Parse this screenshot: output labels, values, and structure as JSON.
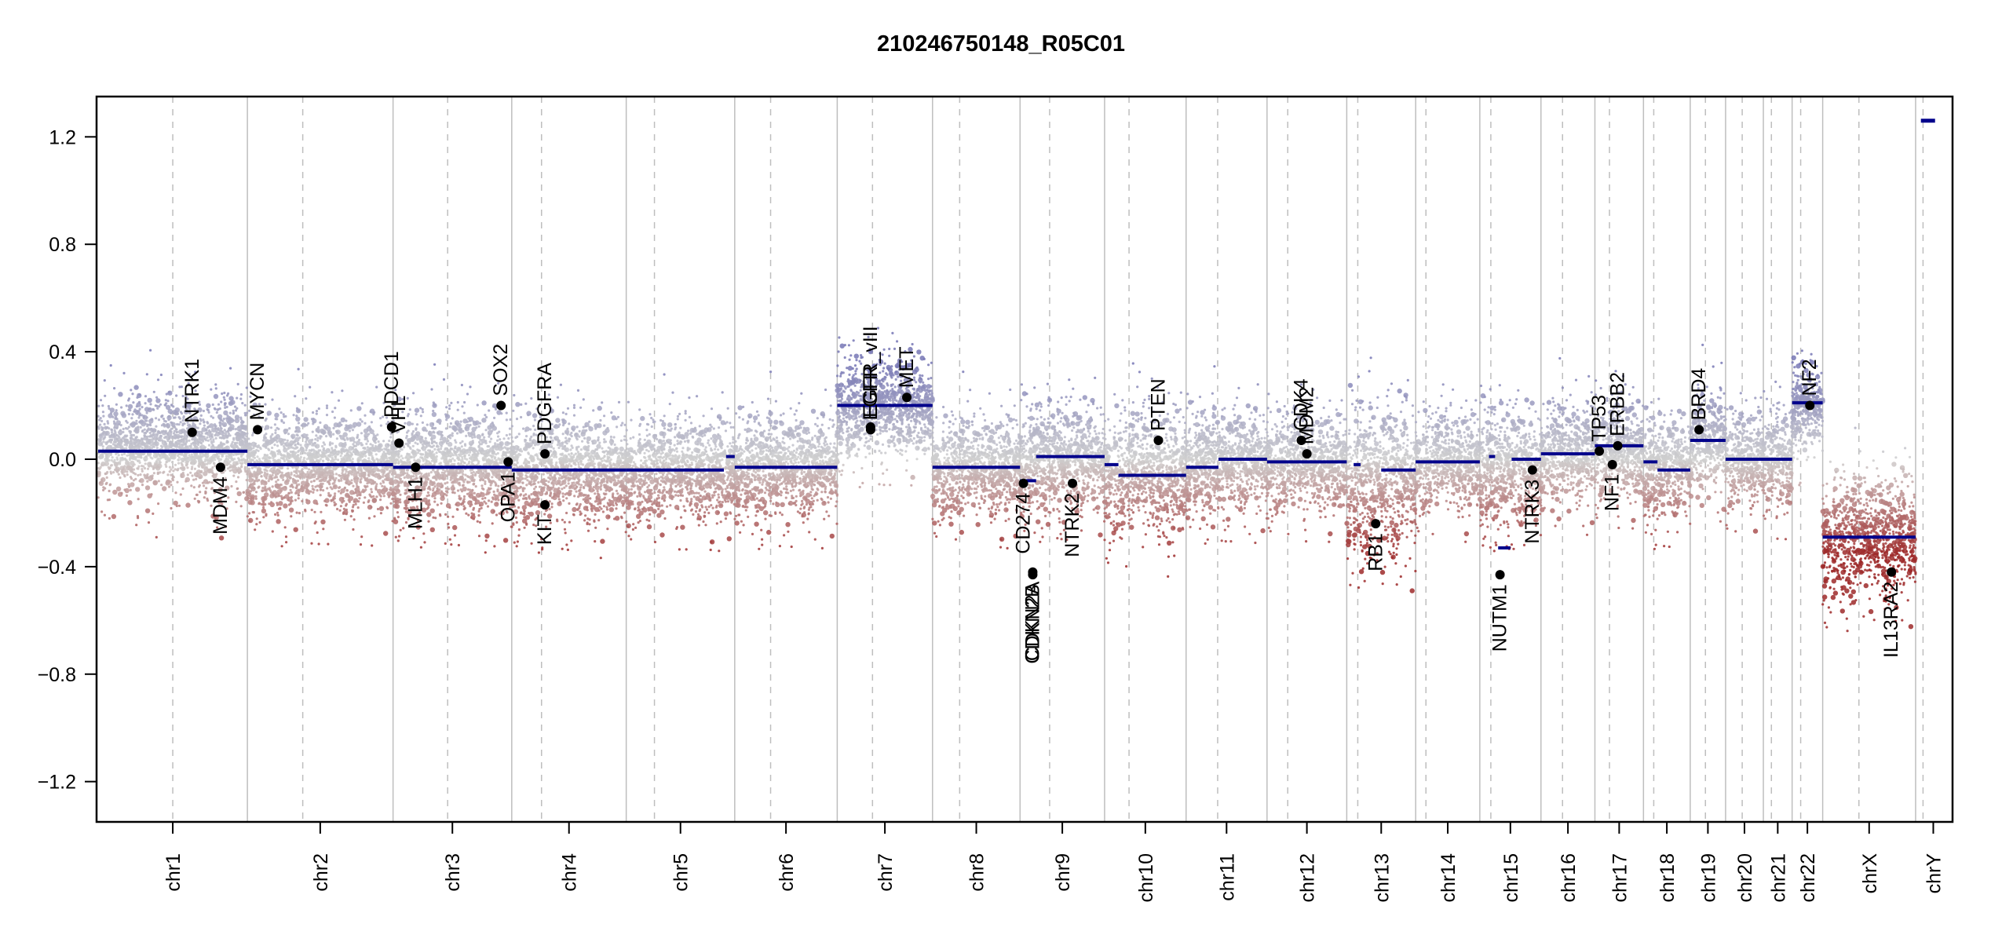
{
  "chart_data": {
    "type": "scatter",
    "title": "210246750148_R05C01",
    "xlabel": "",
    "ylabel": "",
    "ylim": [
      -1.35,
      1.35
    ],
    "yticks": [
      -1.2,
      -0.8,
      -0.4,
      0.0,
      0.4,
      0.8,
      1.2
    ],
    "ytick_labels": [
      "−1.2",
      "−0.8",
      "−0.4",
      "0.0",
      "0.4",
      "0.8",
      "1.2"
    ],
    "grid": false,
    "legend": "none",
    "colors": {
      "gain": "#7777b5",
      "neutral": "#cfcfcf",
      "loss": "#9e2a2a",
      "segment": "#00008b",
      "gene_point": "#000000",
      "chrom_boundary": "#bebebe",
      "centromere": "#bebebe"
    },
    "chromosomes": [
      {
        "name": "chr1",
        "size": 249,
        "centromere": 0.5
      },
      {
        "name": "chr2",
        "size": 243,
        "centromere": 0.38
      },
      {
        "name": "chr3",
        "size": 198,
        "centromere": 0.46
      },
      {
        "name": "chr4",
        "size": 191,
        "centromere": 0.26
      },
      {
        "name": "chr5",
        "size": 181,
        "centromere": 0.26
      },
      {
        "name": "chr6",
        "size": 171,
        "centromere": 0.35
      },
      {
        "name": "chr7",
        "size": 159,
        "centromere": 0.37
      },
      {
        "name": "chr8",
        "size": 146,
        "centromere": 0.31
      },
      {
        "name": "chr9",
        "size": 141,
        "centromere": 0.35
      },
      {
        "name": "chr10",
        "size": 136,
        "centromere": 0.3
      },
      {
        "name": "chr11",
        "size": 135,
        "centromere": 0.39
      },
      {
        "name": "chr12",
        "size": 133,
        "centromere": 0.26
      },
      {
        "name": "chr13",
        "size": 115,
        "centromere": 0.16
      },
      {
        "name": "chr14",
        "size": 107,
        "centromere": 0.16
      },
      {
        "name": "chr15",
        "size": 102,
        "centromere": 0.18
      },
      {
        "name": "chr16",
        "size": 90,
        "centromere": 0.4
      },
      {
        "name": "chr17",
        "size": 81,
        "centromere": 0.3
      },
      {
        "name": "chr18",
        "size": 78,
        "centromere": 0.22
      },
      {
        "name": "chr19",
        "size": 59,
        "centromere": 0.43
      },
      {
        "name": "chr20",
        "size": 63,
        "centromere": 0.44
      },
      {
        "name": "chr21",
        "size": 48,
        "centromere": 0.28
      },
      {
        "name": "chr22",
        "size": 51,
        "centromere": 0.28
      },
      {
        "name": "chrX",
        "size": 155,
        "centromere": 0.39
      },
      {
        "name": "chrY",
        "size": 59,
        "centromere": 0.21
      }
    ],
    "segments": [
      {
        "chr": "chr1",
        "start": 0.0,
        "end": 1.0,
        "value": 0.03
      },
      {
        "chr": "chr2",
        "start": 0.0,
        "end": 1.0,
        "value": -0.02
      },
      {
        "chr": "chr3",
        "start": 0.0,
        "end": 1.0,
        "value": -0.03
      },
      {
        "chr": "chr4",
        "start": 0.0,
        "end": 1.0,
        "value": -0.04
      },
      {
        "chr": "chr5",
        "start": 0.0,
        "end": 0.9,
        "value": -0.04
      },
      {
        "chr": "chr5",
        "start": 0.92,
        "end": 1.0,
        "value": 0.01
      },
      {
        "chr": "chr6",
        "start": 0.0,
        "end": 1.0,
        "value": -0.03
      },
      {
        "chr": "chr7",
        "start": 0.0,
        "end": 1.0,
        "value": 0.2
      },
      {
        "chr": "chr8",
        "start": 0.0,
        "end": 1.0,
        "value": -0.03
      },
      {
        "chr": "chr9",
        "start": 0.0,
        "end": 0.19,
        "value": -0.08
      },
      {
        "chr": "chr9",
        "start": 0.19,
        "end": 1.0,
        "value": 0.01
      },
      {
        "chr": "chr10",
        "start": 0.0,
        "end": 0.17,
        "value": -0.02
      },
      {
        "chr": "chr10",
        "start": 0.17,
        "end": 1.0,
        "value": -0.06
      },
      {
        "chr": "chr11",
        "start": 0.0,
        "end": 0.4,
        "value": -0.03
      },
      {
        "chr": "chr11",
        "start": 0.4,
        "end": 1.0,
        "value": 0.0
      },
      {
        "chr": "chr12",
        "start": 0.0,
        "end": 1.0,
        "value": -0.01
      },
      {
        "chr": "chr13",
        "start": 0.1,
        "end": 0.2,
        "value": -0.02
      },
      {
        "chr": "chr13",
        "start": 0.5,
        "end": 1.0,
        "value": -0.04
      },
      {
        "chr": "chr14",
        "start": 0.0,
        "end": 1.0,
        "value": -0.01
      },
      {
        "chr": "chr15",
        "start": 0.15,
        "end": 0.25,
        "value": 0.01
      },
      {
        "chr": "chr15",
        "start": 0.3,
        "end": 0.5,
        "value": -0.33
      },
      {
        "chr": "chr15",
        "start": 0.52,
        "end": 1.0,
        "value": 0.0
      },
      {
        "chr": "chr16",
        "start": 0.0,
        "end": 1.0,
        "value": 0.02
      },
      {
        "chr": "chr17",
        "start": 0.0,
        "end": 1.0,
        "value": 0.05
      },
      {
        "chr": "chr18",
        "start": 0.0,
        "end": 0.3,
        "value": -0.01
      },
      {
        "chr": "chr18",
        "start": 0.3,
        "end": 1.0,
        "value": -0.04
      },
      {
        "chr": "chr19",
        "start": 0.0,
        "end": 1.0,
        "value": 0.07
      },
      {
        "chr": "chr20",
        "start": 0.0,
        "end": 1.0,
        "value": 0.0
      },
      {
        "chr": "chr21",
        "start": 0.0,
        "end": 1.0,
        "value": 0.0
      },
      {
        "chr": "chr22",
        "start": 0.0,
        "end": 1.0,
        "value": 0.21
      },
      {
        "chr": "chrX",
        "start": 0.0,
        "end": 1.0,
        "value": -0.29
      },
      {
        "chr": "chrY",
        "start": 0.15,
        "end": 0.55,
        "value": 1.26
      }
    ],
    "genes": [
      {
        "name": "NTRK1",
        "chr": "chr1",
        "pos": 0.63,
        "value": 0.1,
        "label": "above"
      },
      {
        "name": "MDM4",
        "chr": "chr1",
        "pos": 0.82,
        "value": -0.03,
        "label": "below"
      },
      {
        "name": "MYCN",
        "chr": "chr2",
        "pos": 0.07,
        "value": 0.11,
        "label": "above"
      },
      {
        "name": "PDCD1",
        "chr": "chr2",
        "pos": 0.99,
        "value": 0.12,
        "label": "above"
      },
      {
        "name": "VHL",
        "chr": "chr3",
        "pos": 0.05,
        "value": 0.06,
        "label": "above"
      },
      {
        "name": "MLH1",
        "chr": "chr3",
        "pos": 0.19,
        "value": -0.03,
        "label": "below"
      },
      {
        "name": "SOX2",
        "chr": "chr3",
        "pos": 0.91,
        "value": 0.2,
        "label": "above"
      },
      {
        "name": "OPA1",
        "chr": "chr3",
        "pos": 0.97,
        "value": -0.01,
        "label": "below"
      },
      {
        "name": "PDGFRA",
        "chr": "chr4",
        "pos": 0.29,
        "value": 0.02,
        "label": "above"
      },
      {
        "name": "KIT",
        "chr": "chr4",
        "pos": 0.29,
        "value": -0.17,
        "label": "below"
      },
      {
        "name": "EGFR",
        "chr": "chr7",
        "pos": 0.35,
        "value": 0.11,
        "label": "above"
      },
      {
        "name": "EGFR_vIII",
        "chr": "chr7",
        "pos": 0.35,
        "value": 0.12,
        "label": "above"
      },
      {
        "name": "MET",
        "chr": "chr7",
        "pos": 0.73,
        "value": 0.23,
        "label": "above"
      },
      {
        "name": "CD274",
        "chr": "chr9",
        "pos": 0.04,
        "value": -0.09,
        "label": "below"
      },
      {
        "name": "CDKN2A",
        "chr": "chr9",
        "pos": 0.15,
        "value": -0.42,
        "label": "below"
      },
      {
        "name": "CDKN2B",
        "chr": "chr9",
        "pos": 0.15,
        "value": -0.43,
        "label": "below"
      },
      {
        "name": "NTRK2",
        "chr": "chr9",
        "pos": 0.62,
        "value": -0.09,
        "label": "below"
      },
      {
        "name": "PTEN",
        "chr": "chr10",
        "pos": 0.66,
        "value": 0.07,
        "label": "above"
      },
      {
        "name": "CDK4",
        "chr": "chr12",
        "pos": 0.43,
        "value": 0.07,
        "label": "above"
      },
      {
        "name": "MDM2",
        "chr": "chr12",
        "pos": 0.5,
        "value": 0.02,
        "label": "above"
      },
      {
        "name": "RB1",
        "chr": "chr13",
        "pos": 0.42,
        "value": -0.24,
        "label": "below"
      },
      {
        "name": "NUTM1",
        "chr": "chr15",
        "pos": 0.33,
        "value": -0.43,
        "label": "below"
      },
      {
        "name": "NTRK3",
        "chr": "chr15",
        "pos": 0.86,
        "value": -0.04,
        "label": "below"
      },
      {
        "name": "TP53",
        "chr": "chr17",
        "pos": 0.09,
        "value": 0.03,
        "label": "above"
      },
      {
        "name": "NF1",
        "chr": "chr17",
        "pos": 0.36,
        "value": -0.02,
        "label": "below"
      },
      {
        "name": "ERBB2",
        "chr": "chr17",
        "pos": 0.47,
        "value": 0.05,
        "label": "above"
      },
      {
        "name": "BRD4",
        "chr": "chr19",
        "pos": 0.25,
        "value": 0.11,
        "label": "above"
      },
      {
        "name": "NF2",
        "chr": "chr22",
        "pos": 0.58,
        "value": 0.2,
        "label": "above"
      },
      {
        "name": "IL13RA2",
        "chr": "chrX",
        "pos": 0.74,
        "value": -0.42,
        "label": "below"
      }
    ],
    "chromosome_profiles": [
      {
        "chr": "chr1",
        "center": 0.05,
        "spread": 0.1
      },
      {
        "chr": "chr2",
        "center": -0.02,
        "spread": 0.1
      },
      {
        "chr": "chr3",
        "center": -0.02,
        "spread": 0.11
      },
      {
        "chr": "chr4",
        "center": -0.04,
        "spread": 0.11
      },
      {
        "chr": "chr5",
        "center": -0.04,
        "spread": 0.1
      },
      {
        "chr": "chr6",
        "center": -0.03,
        "spread": 0.1
      },
      {
        "chr": "chr7",
        "center": 0.2,
        "spread": 0.1
      },
      {
        "chr": "chr8",
        "center": -0.03,
        "spread": 0.1
      },
      {
        "chr": "chr9",
        "center": 0.0,
        "spread": 0.11
      },
      {
        "chr": "chr10",
        "center": -0.05,
        "spread": 0.13
      },
      {
        "chr": "chr11",
        "center": -0.01,
        "spread": 0.1
      },
      {
        "chr": "chr12",
        "center": -0.01,
        "spread": 0.1
      },
      {
        "chr": "chr13",
        "center": -0.08,
        "spread": 0.16
      },
      {
        "chr": "chr14",
        "center": -0.01,
        "spread": 0.1
      },
      {
        "chr": "chr15",
        "center": -0.03,
        "spread": 0.12
      },
      {
        "chr": "chr16",
        "center": 0.02,
        "spread": 0.1
      },
      {
        "chr": "chr17",
        "center": 0.04,
        "spread": 0.1
      },
      {
        "chr": "chr18",
        "center": -0.03,
        "spread": 0.1
      },
      {
        "chr": "chr19",
        "center": 0.07,
        "spread": 0.1
      },
      {
        "chr": "chr20",
        "center": 0.0,
        "spread": 0.1
      },
      {
        "chr": "chr21",
        "center": 0.0,
        "spread": 0.1
      },
      {
        "chr": "chr22",
        "center": 0.2,
        "spread": 0.08
      },
      {
        "chr": "chrX",
        "center": -0.29,
        "spread": 0.13
      },
      {
        "chr": "chrY",
        "center": 1.26,
        "spread": 0.0
      }
    ]
  }
}
